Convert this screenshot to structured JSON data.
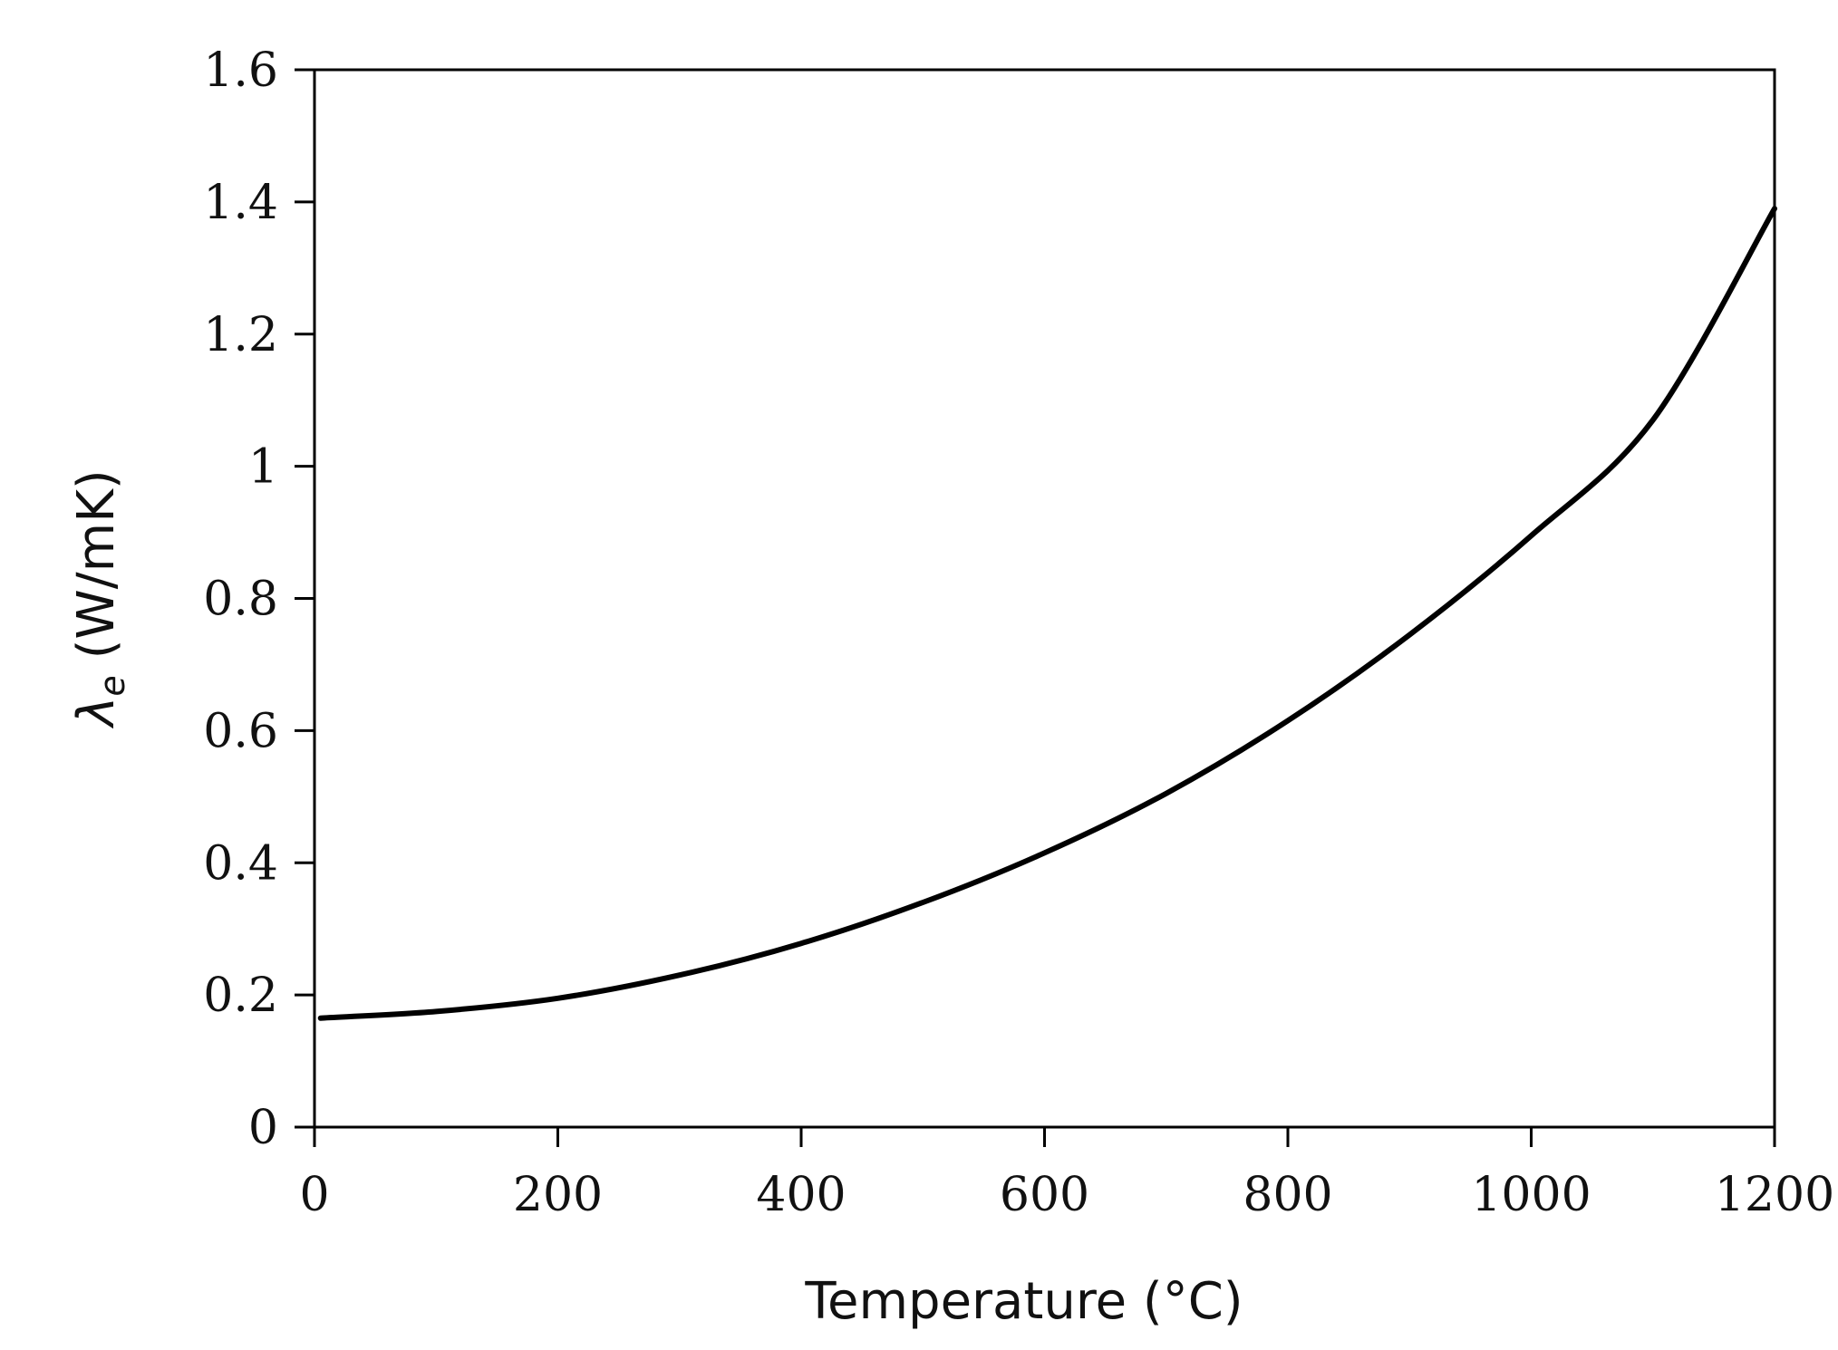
{
  "chart_data": {
    "type": "line",
    "title": "",
    "xlabel": "Temperature (°C)",
    "ylabel": {
      "symbol": "λ",
      "subscript": "e",
      "unit": " (W/mK)"
    },
    "xlim": [
      0,
      1200
    ],
    "ylim": [
      0,
      1.6
    ],
    "xticks": [
      0,
      200,
      400,
      600,
      800,
      1000,
      1200
    ],
    "xtick_labels": [
      "0",
      "200",
      "400",
      "600",
      "800",
      "1000",
      "1200"
    ],
    "yticks": [
      0,
      0.2,
      0.4,
      0.6,
      0.8,
      1.0,
      1.2,
      1.4,
      1.6
    ],
    "ytick_labels": [
      "0",
      "0.2",
      "0.4",
      "0.6",
      "0.8",
      "1",
      "1.2",
      "1.4",
      "1.6"
    ],
    "grid": false,
    "legend": "none",
    "series": [
      {
        "color": "#000000",
        "x": [
          5,
          100,
          200,
          300,
          400,
          500,
          600,
          700,
          800,
          900,
          1000,
          1100,
          1200
        ],
        "y": [
          0.165,
          0.175,
          0.195,
          0.23,
          0.278,
          0.34,
          0.415,
          0.505,
          0.615,
          0.745,
          0.895,
          1.07,
          1.39
        ]
      }
    ]
  }
}
